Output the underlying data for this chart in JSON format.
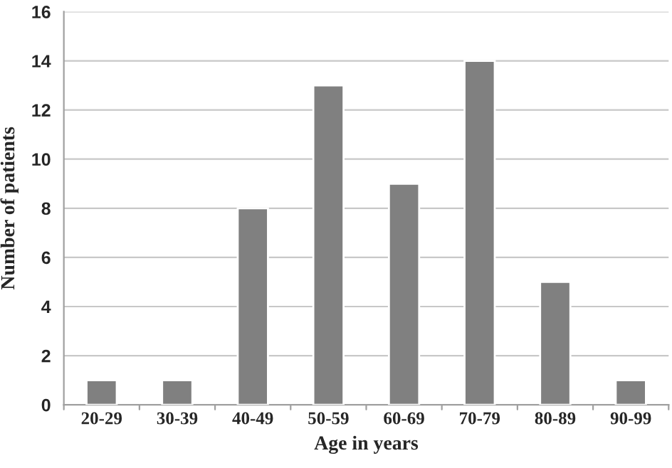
{
  "chart_data": {
    "type": "bar",
    "xlabel": "Age in years",
    "ylabel": "Number of patients",
    "categories": [
      "20-29",
      "30-39",
      "40-49",
      "50-59",
      "60-69",
      "70-79",
      "80-89",
      "90-99"
    ],
    "values": [
      1,
      1,
      8,
      13,
      9,
      14,
      5,
      1
    ],
    "color": "#808080",
    "ylim": [
      0,
      16
    ],
    "yticks": [
      0,
      2,
      4,
      6,
      8,
      10,
      12,
      14,
      16
    ],
    "grid": "y"
  }
}
